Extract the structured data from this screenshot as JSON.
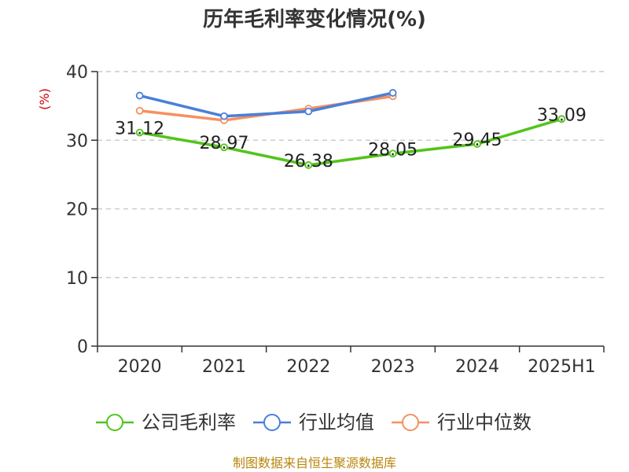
{
  "colors": {
    "company": "#52c41a",
    "industry_avg": "#4a7fd8",
    "industry_median": "#f59060",
    "unit_label": "#cc0000",
    "source": "#b8860b",
    "grid": "#cccccc",
    "axis": "#333333"
  },
  "source_note": "制图数据来自恒生聚源数据库",
  "chart_data": {
    "type": "line",
    "title": "历年毛利率变化情况(%)",
    "ylabel": "(%)",
    "xlabel": "",
    "categories": [
      "2020",
      "2021",
      "2022",
      "2023",
      "2024",
      "2025H1"
    ],
    "ylim": [
      0,
      40
    ],
    "yticks": [
      "0",
      "10",
      "20",
      "30",
      "40"
    ],
    "grid": true,
    "legend_position": "bottom",
    "series": [
      {
        "name": "公司毛利率",
        "color_key": "company",
        "values": [
          31.12,
          28.97,
          26.38,
          28.05,
          29.45,
          33.09
        ],
        "labels": [
          "31.12",
          "28.97",
          "26.38",
          "28.05",
          "29.45",
          "33.09"
        ]
      },
      {
        "name": "行业均值",
        "color_key": "industry_avg",
        "values": [
          36.5,
          33.5,
          34.2,
          36.9,
          null,
          null
        ]
      },
      {
        "name": "行业中位数",
        "color_key": "industry_median",
        "values": [
          34.3,
          32.9,
          34.6,
          36.4,
          null,
          null
        ]
      }
    ]
  }
}
